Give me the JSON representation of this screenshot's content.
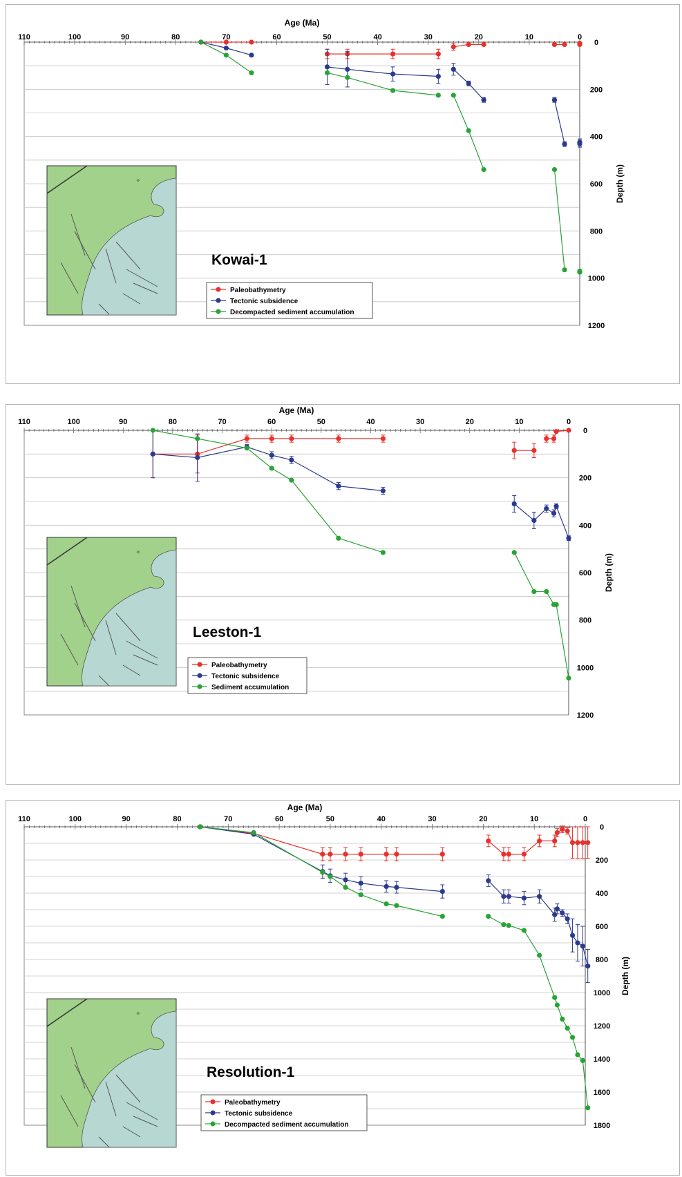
{
  "colors": {
    "paleobathymetry": "#e8302c",
    "tectonic": "#2c3a8e",
    "sediment": "#2aa336",
    "grid": "#c4c4c4",
    "land": "#a2d18c",
    "sea": "#b6d7d2"
  },
  "chart_data": [
    {
      "type": "line",
      "well": "Kowai-1",
      "xlabel": "Age (Ma)",
      "ylabel": "Depth (m)",
      "xlim": [
        110,
        0
      ],
      "ylim": [
        0,
        1200
      ],
      "x_ticks": [
        110,
        100,
        90,
        80,
        70,
        60,
        50,
        40,
        30,
        20,
        10,
        0
      ],
      "y_ticks": [
        0,
        200,
        400,
        600,
        800,
        1000,
        1200
      ],
      "grid": "horizontal",
      "legend_position": "bottom-center",
      "legend": [
        "Paleobathymetry",
        "Tectonic subsidence",
        "Decompacted sediment accumulation"
      ],
      "series": [
        {
          "key": "paleobathymetry",
          "segments": [
            [
              [
                75,
                0
              ],
              [
                70,
                0
              ],
              [
                65,
                0
              ]
            ],
            [
              [
                50,
                50,
                20
              ],
              [
                46,
                50,
                20
              ],
              [
                37,
                50,
                20
              ],
              [
                28,
                50,
                20
              ]
            ],
            [
              [
                25,
                20,
                15
              ],
              [
                22,
                10
              ],
              [
                19,
                10
              ]
            ],
            [
              [
                5,
                10
              ],
              [
                3,
                10
              ]
            ],
            [
              [
                0,
                5
              ],
              [
                0,
                10
              ]
            ]
          ]
        },
        {
          "key": "tectonic",
          "segments": [
            [
              [
                75,
                0
              ],
              [
                70,
                25
              ],
              [
                65,
                55
              ]
            ],
            [
              [
                50,
                105,
                75
              ],
              [
                46,
                115,
                75
              ],
              [
                37,
                135,
                30
              ],
              [
                28,
                145,
                30
              ]
            ],
            [
              [
                25,
                115,
                25
              ],
              [
                22,
                175,
                10
              ],
              [
                19,
                245,
                10
              ]
            ],
            [
              [
                5,
                245,
                10
              ],
              [
                3,
                432,
                10
              ]
            ],
            [
              [
                0,
                425,
                15
              ],
              [
                0,
                430,
                15
              ]
            ]
          ]
        },
        {
          "key": "sediment",
          "segments": [
            [
              [
                75,
                0
              ],
              [
                70,
                55
              ],
              [
                65,
                130
              ]
            ],
            [
              [
                50,
                130
              ],
              [
                46,
                150
              ],
              [
                37,
                205
              ],
              [
                28,
                225
              ]
            ],
            [
              [
                25,
                225
              ],
              [
                22,
                375
              ],
              [
                19,
                540
              ]
            ],
            [
              [
                5,
                540
              ],
              [
                3,
                965
              ]
            ],
            [
              [
                0,
                970
              ],
              [
                0,
                975
              ]
            ]
          ]
        }
      ]
    },
    {
      "type": "line",
      "well": "Leeston-1",
      "xlabel": "Age (Ma)",
      "ylabel": "Depth (m)",
      "xlim": [
        110,
        0
      ],
      "ylim": [
        0,
        1200
      ],
      "x_ticks": [
        110,
        100,
        90,
        80,
        70,
        60,
        50,
        40,
        30,
        20,
        10,
        0
      ],
      "y_ticks": [
        0,
        200,
        400,
        600,
        800,
        1000,
        1200
      ],
      "grid": "horizontal",
      "legend_position": "bottom-center",
      "legend": [
        "Paleobathymetry",
        "Tectonic subsidence",
        "Sediment accumulation"
      ],
      "series": [
        {
          "key": "paleobathymetry",
          "segments": [
            [
              [
                84,
                100,
                100
              ],
              [
                75,
                100,
                80
              ],
              [
                65,
                35,
                15
              ],
              [
                60,
                35,
                15
              ],
              [
                56,
                35,
                15
              ],
              [
                46.5,
                35,
                15
              ],
              [
                37.5,
                35,
                15
              ]
            ],
            [
              [
                11,
                85,
                35
              ],
              [
                7,
                85,
                30
              ]
            ],
            [
              [
                4.5,
                35,
                15
              ],
              [
                3,
                35,
                15
              ],
              [
                2.5,
                5
              ],
              [
                0,
                0
              ]
            ]
          ]
        },
        {
          "key": "tectonic",
          "segments": [
            [
              [
                84,
                100,
                100
              ],
              [
                75,
                115,
                100
              ],
              [
                65,
                70,
                10
              ],
              [
                60,
                105,
                15
              ],
              [
                56,
                125,
                15
              ],
              [
                46.5,
                235,
                15
              ],
              [
                37.5,
                255,
                15
              ]
            ],
            [
              [
                11,
                310,
                35
              ],
              [
                7,
                380,
                35
              ],
              [
                4.5,
                330,
                15
              ],
              [
                3,
                350,
                15
              ],
              [
                2.5,
                320,
                10
              ],
              [
                0,
                455,
                10
              ]
            ]
          ]
        },
        {
          "key": "sediment",
          "segments": [
            [
              [
                84,
                0
              ],
              [
                75,
                35
              ],
              [
                65,
                75
              ],
              [
                60,
                160
              ],
              [
                56,
                210
              ],
              [
                46.5,
                455
              ],
              [
                37.5,
                515
              ]
            ],
            [
              [
                11,
                515
              ],
              [
                7,
                680
              ],
              [
                4.5,
                680
              ],
              [
                3,
                735
              ],
              [
                2.5,
                735
              ],
              [
                0,
                1045
              ]
            ]
          ]
        }
      ]
    },
    {
      "type": "line",
      "well": "Resolution-1",
      "xlabel": "Age (Ma)",
      "ylabel": "Depth (m)",
      "xlim": [
        110,
        0
      ],
      "ylim": [
        0,
        1800
      ],
      "x_ticks": [
        110,
        100,
        90,
        80,
        70,
        60,
        50,
        40,
        30,
        20,
        10,
        0
      ],
      "y_ticks": [
        0,
        200,
        400,
        600,
        800,
        1000,
        1200,
        1400,
        1600,
        1800
      ],
      "grid": "horizontal",
      "legend_position": "bottom-center",
      "legend": [
        "Paleobathymetry",
        "Tectonic subsidence",
        "Decompacted sediment accumulation"
      ],
      "series": [
        {
          "key": "paleobathymetry",
          "segments": [
            [
              [
                75.5,
                0
              ],
              [
                65,
                40
              ],
              [
                51.5,
                165,
                40
              ],
              [
                50,
                165,
                40
              ],
              [
                47,
                165,
                40
              ],
              [
                44,
                165,
                40
              ],
              [
                39,
                165,
                40
              ],
              [
                37,
                165,
                40
              ],
              [
                28,
                165,
                40
              ]
            ],
            [
              [
                19,
                85,
                35
              ],
              [
                16,
                165,
                40
              ],
              [
                15,
                165,
                40
              ],
              [
                12,
                165,
                40
              ],
              [
                9,
                85,
                35
              ],
              [
                6,
                85,
                35
              ],
              [
                5.5,
                35,
                25
              ],
              [
                4.5,
                15,
                20
              ],
              [
                3.5,
                25,
                20
              ],
              [
                2.5,
                95,
                95
              ],
              [
                1.5,
                95,
                95
              ],
              [
                0.5,
                95,
                95
              ],
              [
                -0.5,
                95,
                95
              ]
            ]
          ]
        },
        {
          "key": "tectonic",
          "segments": [
            [
              [
                75.5,
                0
              ],
              [
                65,
                45
              ],
              [
                51.5,
                270,
                40
              ],
              [
                50,
                295,
                40
              ],
              [
                47,
                320,
                40
              ],
              [
                44,
                340,
                40
              ],
              [
                39,
                360,
                35
              ],
              [
                37,
                365,
                35
              ],
              [
                28,
                390,
                40
              ]
            ],
            [
              [
                19,
                325,
                35
              ],
              [
                16,
                420,
                40
              ],
              [
                15,
                420,
                40
              ],
              [
                12,
                430,
                40
              ],
              [
                9,
                420,
                40
              ],
              [
                6,
                530,
                40
              ],
              [
                5.5,
                495,
                30
              ],
              [
                4.5,
                520,
                20
              ],
              [
                3.5,
                555,
                30
              ],
              [
                2.5,
                655,
                100
              ],
              [
                1.5,
                700,
                110
              ],
              [
                0.5,
                720,
                120
              ],
              [
                -0.5,
                840,
                100
              ]
            ]
          ]
        },
        {
          "key": "sediment",
          "segments": [
            [
              [
                75.5,
                0
              ],
              [
                65,
                35
              ],
              [
                51.5,
                275
              ],
              [
                50,
                300
              ],
              [
                47,
                365
              ],
              [
                44,
                410
              ],
              [
                39,
                465
              ],
              [
                37,
                475
              ],
              [
                28,
                540
              ]
            ],
            [
              [
                19,
                540
              ],
              [
                16,
                590
              ],
              [
                15,
                595
              ],
              [
                12,
                625
              ],
              [
                9,
                775
              ],
              [
                6,
                1030
              ],
              [
                5.5,
                1075
              ],
              [
                4.5,
                1160
              ],
              [
                3.5,
                1215
              ],
              [
                2.5,
                1270
              ],
              [
                1.5,
                1375
              ],
              [
                0.5,
                1410
              ],
              [
                -0.5,
                1695
              ]
            ]
          ]
        }
      ]
    }
  ]
}
